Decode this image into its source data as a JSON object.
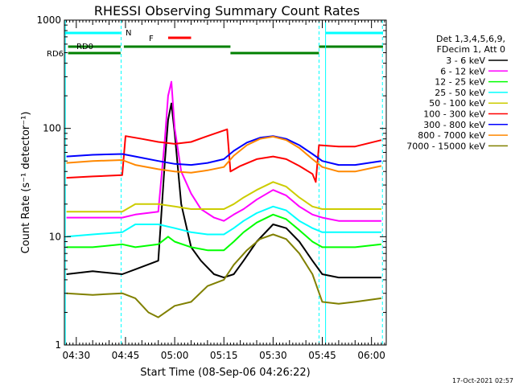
{
  "chart_data": {
    "type": "line",
    "title": "RHESSI Observing Summary Count Rates",
    "xlabel": "Start Time (08-Sep-06 04:26:22)",
    "ylabel": "Count Rate (s⁻¹ detector⁻¹)",
    "yscale": "log",
    "ylim": [
      1,
      1000
    ],
    "xlim": [
      "04:26:22",
      "06:04:30"
    ],
    "x_tick_labels": [
      "04:30",
      "04:45",
      "05:00",
      "05:15",
      "05:30",
      "05:45",
      "06:00"
    ],
    "x_ticks": [
      "04:30",
      "04:45",
      "05:00",
      "05:15",
      "05:30",
      "05:45",
      "06:00"
    ],
    "y_tick_labels": [
      "1",
      "10",
      "100",
      "1000"
    ],
    "y_ticks": [
      1,
      10,
      100,
      1000
    ],
    "grid": false,
    "legend_header": [
      "Det 1,3,4,5,6,9,",
      "FDecim 1, Att 0"
    ],
    "timestamp": "17-Oct-2021 02:57",
    "series": [
      {
        "name": "3 - 6 keV",
        "color": "#000000",
        "points": [
          [
            "04:27",
            4.5
          ],
          [
            "04:35",
            4.8
          ],
          [
            "04:44",
            4.5
          ],
          [
            "04:48",
            5
          ],
          [
            "04:55",
            6
          ],
          [
            "04:57",
            50
          ],
          [
            "04:58",
            120
          ],
          [
            "04:59",
            170
          ],
          [
            "05:00",
            90
          ],
          [
            "05:02",
            20
          ],
          [
            "05:05",
            8
          ],
          [
            "05:08",
            6
          ],
          [
            "05:12",
            4.5
          ],
          [
            "05:15",
            4.2
          ],
          [
            "05:18",
            4.5
          ],
          [
            "05:21",
            6
          ],
          [
            "05:25",
            9
          ],
          [
            "05:30",
            13
          ],
          [
            "05:34",
            12
          ],
          [
            "05:38",
            9
          ],
          [
            "05:42",
            6
          ],
          [
            "05:45",
            4.5
          ],
          [
            "05:50",
            4.2
          ],
          [
            "05:55",
            4.2
          ],
          [
            "06:03",
            4.2
          ]
        ]
      },
      {
        "name": "6 - 12 keV",
        "color": "#ff00ff",
        "points": [
          [
            "04:27",
            15
          ],
          [
            "04:35",
            15
          ],
          [
            "04:44",
            15
          ],
          [
            "04:48",
            16
          ],
          [
            "04:55",
            17
          ],
          [
            "04:57",
            80
          ],
          [
            "04:58",
            200
          ],
          [
            "04:59",
            270
          ],
          [
            "05:00",
            100
          ],
          [
            "05:02",
            40
          ],
          [
            "05:05",
            25
          ],
          [
            "05:08",
            18
          ],
          [
            "05:12",
            15
          ],
          [
            "05:15",
            14
          ],
          [
            "05:18",
            16
          ],
          [
            "05:21",
            18
          ],
          [
            "05:25",
            22
          ],
          [
            "05:30",
            27
          ],
          [
            "05:34",
            24
          ],
          [
            "05:38",
            19
          ],
          [
            "05:42",
            16
          ],
          [
            "05:45",
            15
          ],
          [
            "05:50",
            14
          ],
          [
            "05:55",
            14
          ],
          [
            "06:03",
            14
          ]
        ]
      },
      {
        "name": "12 - 25 keV",
        "color": "#00ff00",
        "points": [
          [
            "04:27",
            8
          ],
          [
            "04:35",
            8
          ],
          [
            "04:44",
            8.5
          ],
          [
            "04:48",
            8
          ],
          [
            "04:55",
            8.5
          ],
          [
            "04:58",
            10
          ],
          [
            "05:00",
            9
          ],
          [
            "05:05",
            8
          ],
          [
            "05:10",
            7.5
          ],
          [
            "05:15",
            7.5
          ],
          [
            "05:18",
            9
          ],
          [
            "05:21",
            11
          ],
          [
            "05:25",
            13.5
          ],
          [
            "05:30",
            16
          ],
          [
            "05:34",
            14.5
          ],
          [
            "05:38",
            11.5
          ],
          [
            "05:42",
            9
          ],
          [
            "05:45",
            8
          ],
          [
            "05:50",
            8
          ],
          [
            "05:55",
            8
          ],
          [
            "06:03",
            8.5
          ]
        ]
      },
      {
        "name": "25 - 50 keV",
        "color": "#00ffff",
        "points": [
          [
            "04:27",
            10
          ],
          [
            "04:35",
            10.5
          ],
          [
            "04:44",
            11
          ],
          [
            "04:48",
            13
          ],
          [
            "04:55",
            13
          ],
          [
            "05:00",
            12
          ],
          [
            "05:05",
            11
          ],
          [
            "05:10",
            10.5
          ],
          [
            "05:15",
            10.5
          ],
          [
            "05:18",
            12
          ],
          [
            "05:21",
            14
          ],
          [
            "05:25",
            16.5
          ],
          [
            "05:30",
            19
          ],
          [
            "05:34",
            17.5
          ],
          [
            "05:38",
            14
          ],
          [
            "05:42",
            12
          ],
          [
            "05:45",
            11
          ],
          [
            "05:50",
            11
          ],
          [
            "05:55",
            11
          ],
          [
            "06:03",
            11
          ]
        ]
      },
      {
        "name": "50 - 100 keV",
        "color": "#cccc00",
        "points": [
          [
            "04:27",
            17
          ],
          [
            "04:35",
            17
          ],
          [
            "04:44",
            17
          ],
          [
            "04:48",
            20
          ],
          [
            "04:55",
            20
          ],
          [
            "05:00",
            19
          ],
          [
            "05:05",
            18
          ],
          [
            "05:10",
            18
          ],
          [
            "05:15",
            18
          ],
          [
            "05:18",
            20
          ],
          [
            "05:21",
            23
          ],
          [
            "05:25",
            27
          ],
          [
            "05:30",
            32
          ],
          [
            "05:34",
            29
          ],
          [
            "05:38",
            23
          ],
          [
            "05:42",
            19
          ],
          [
            "05:45",
            18
          ],
          [
            "05:50",
            18
          ],
          [
            "05:55",
            18
          ],
          [
            "06:03",
            18
          ]
        ]
      },
      {
        "name": "100 - 300 keV",
        "color": "#ff0000",
        "points": [
          [
            "04:27",
            35
          ],
          [
            "04:35",
            36
          ],
          [
            "04:44",
            37
          ],
          [
            "04:45",
            85
          ],
          [
            "04:50",
            80
          ],
          [
            "04:55",
            75
          ],
          [
            "05:00",
            72
          ],
          [
            "05:05",
            75
          ],
          [
            "05:10",
            85
          ],
          [
            "05:16",
            98
          ],
          [
            "05:17",
            40
          ],
          [
            "05:20",
            45
          ],
          [
            "05:25",
            52
          ],
          [
            "05:30",
            55
          ],
          [
            "05:34",
            52
          ],
          [
            "05:38",
            45
          ],
          [
            "05:42",
            38
          ],
          [
            "05:43",
            32
          ],
          [
            "05:44",
            70
          ],
          [
            "05:50",
            68
          ],
          [
            "05:55",
            68
          ],
          [
            "06:03",
            78
          ]
        ]
      },
      {
        "name": "300 - 800 keV",
        "color": "#0000ff",
        "points": [
          [
            "04:27",
            55
          ],
          [
            "04:35",
            57
          ],
          [
            "04:44",
            58
          ],
          [
            "04:48",
            55
          ],
          [
            "04:55",
            50
          ],
          [
            "05:00",
            47
          ],
          [
            "05:05",
            46
          ],
          [
            "05:10",
            48
          ],
          [
            "05:15",
            52
          ],
          [
            "05:18",
            62
          ],
          [
            "05:22",
            74
          ],
          [
            "05:26",
            82
          ],
          [
            "05:30",
            85
          ],
          [
            "05:34",
            80
          ],
          [
            "05:38",
            70
          ],
          [
            "05:42",
            58
          ],
          [
            "05:45",
            50
          ],
          [
            "05:50",
            46
          ],
          [
            "05:55",
            46
          ],
          [
            "06:03",
            50
          ]
        ]
      },
      {
        "name": "800 - 7000 keV",
        "color": "#ff8800",
        "points": [
          [
            "04:27",
            48
          ],
          [
            "04:35",
            50
          ],
          [
            "04:44",
            51
          ],
          [
            "04:48",
            46
          ],
          [
            "04:55",
            42
          ],
          [
            "05:00",
            40
          ],
          [
            "05:05",
            39
          ],
          [
            "05:10",
            41
          ],
          [
            "05:15",
            44
          ],
          [
            "05:18",
            56
          ],
          [
            "05:22",
            70
          ],
          [
            "05:26",
            80
          ],
          [
            "05:30",
            84
          ],
          [
            "05:34",
            78
          ],
          [
            "05:38",
            66
          ],
          [
            "05:42",
            52
          ],
          [
            "05:45",
            44
          ],
          [
            "05:50",
            40
          ],
          [
            "05:55",
            40
          ],
          [
            "06:03",
            45
          ]
        ]
      },
      {
        "name": "7000 - 15000 keV",
        "color": "#808000",
        "points": [
          [
            "04:27",
            3
          ],
          [
            "04:35",
            2.9
          ],
          [
            "04:44",
            3
          ],
          [
            "04:48",
            2.7
          ],
          [
            "04:52",
            2
          ],
          [
            "04:55",
            1.8
          ],
          [
            "05:00",
            2.3
          ],
          [
            "05:05",
            2.5
          ],
          [
            "05:10",
            3.5
          ],
          [
            "05:15",
            4
          ],
          [
            "05:18",
            5.5
          ],
          [
            "05:22",
            7.5
          ],
          [
            "05:26",
            9.5
          ],
          [
            "05:30",
            10.5
          ],
          [
            "05:34",
            9.5
          ],
          [
            "05:38",
            7
          ],
          [
            "05:42",
            4.5
          ],
          [
            "05:45",
            2.5
          ],
          [
            "05:50",
            2.4
          ],
          [
            "05:55",
            2.5
          ],
          [
            "06:03",
            2.7
          ]
        ]
      }
    ],
    "attenuator_bands": [
      {
        "label": "N",
        "color": "#00ffff",
        "segments": [
          [
            "04:26:30",
            "04:43:30"
          ],
          [
            "05:46:00",
            "06:03:30"
          ]
        ]
      },
      {
        "label": "F",
        "color": "#ff0000",
        "segments": [
          [
            "04:58:00",
            "05:05:00"
          ]
        ]
      },
      {
        "label": "RD0",
        "color": "#008000",
        "segments": [
          [
            "04:27:30",
            "04:43:30"
          ],
          [
            "04:44:30",
            "05:17:00"
          ],
          [
            "05:44:00",
            "06:03:30"
          ]
        ]
      },
      {
        "label": "RD6",
        "color": "#008000",
        "segments": [
          [
            "04:27:30",
            "04:43:30"
          ],
          [
            "05:17:00",
            "05:44:00"
          ]
        ]
      }
    ],
    "vertical_markers": [
      {
        "time": "04:26:40",
        "color": "#00ffff",
        "style": "solid"
      },
      {
        "time": "04:43:40",
        "color": "#00ffff",
        "style": "dashed"
      },
      {
        "time": "05:44:00",
        "color": "#00ffff",
        "style": "dashed"
      },
      {
        "time": "05:46:00",
        "color": "#00ffff",
        "style": "solid"
      },
      {
        "time": "06:03:20",
        "color": "#00ffff",
        "style": "dashed"
      }
    ]
  }
}
